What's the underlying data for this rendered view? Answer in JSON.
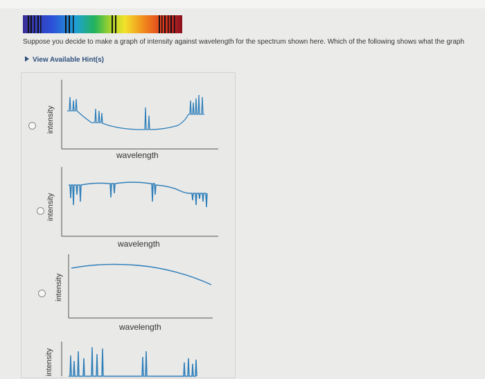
{
  "question": {
    "text": "Suppose you decide to make a graph of intensity against wavelength for the spectrum shown here. Which of the following shows what the graph"
  },
  "hint": {
    "label": "View Available Hint(s)"
  },
  "spectrum_image": {
    "description_icon": "absorption-spectrum-rainbow-strip",
    "colors": [
      "#3a2e9a",
      "#2c4fd8",
      "#1fa0d6",
      "#22b35a",
      "#a8d42a",
      "#f2e12a",
      "#f08a1c",
      "#e03a1e",
      "#8a1020"
    ]
  },
  "options": [
    {
      "ylabel": "intensity",
      "xlabel": "wavelength",
      "curve": "absorption-lines-dipping-baseline",
      "selected": false
    },
    {
      "ylabel": "intensity",
      "xlabel": "wavelength",
      "curve": "continuum-with-absorption-dips",
      "selected": false
    },
    {
      "ylabel": "intensity",
      "xlabel": "wavelength",
      "curve": "smooth-continuum",
      "selected": false
    },
    {
      "ylabel": "intensity",
      "xlabel": "",
      "curve": "emission-lines",
      "selected": false
    }
  ],
  "style": {
    "curve_color": "#2f7fb9",
    "axis_color": "#555555"
  }
}
